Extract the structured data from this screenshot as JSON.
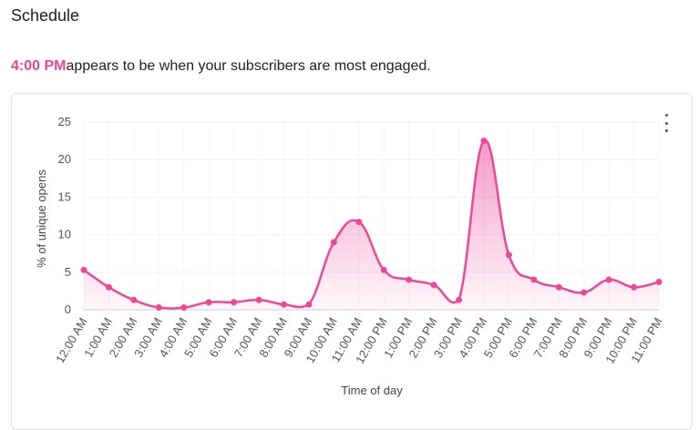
{
  "header": {
    "title": "Schedule"
  },
  "insight": {
    "highlight": "4:00 PM",
    "text": "appears to be when your subscribers are most engaged."
  },
  "colors": {
    "accent": "#e8479a",
    "line": "#ec4899"
  },
  "menu": {
    "icon": "kebab-menu-icon"
  },
  "chart_data": {
    "type": "area",
    "xlabel": "Time of day",
    "ylabel": "% of unique opens",
    "ylim": [
      0,
      25
    ],
    "yticks": [
      0,
      5,
      10,
      15,
      20,
      25
    ],
    "grid": true,
    "categories": [
      "12:00 AM",
      "1:00 AM",
      "2:00 AM",
      "3:00 AM",
      "4:00 AM",
      "5:00 AM",
      "6:00 AM",
      "7:00 AM",
      "8:00 AM",
      "9:00 AM",
      "10:00 AM",
      "11:00 AM",
      "12:00 PM",
      "1:00 PM",
      "2:00 PM",
      "3:00 PM",
      "4:00 PM",
      "5:00 PM",
      "6:00 PM",
      "7:00 PM",
      "8:00 PM",
      "9:00 PM",
      "10:00 PM",
      "11:00 PM"
    ],
    "values": [
      5.3,
      3.0,
      1.3,
      0.3,
      0.3,
      1.0,
      1.0,
      1.3,
      0.7,
      0.7,
      9.0,
      11.7,
      5.3,
      4.0,
      3.3,
      1.3,
      22.5,
      7.3,
      4.0,
      3.0,
      2.3,
      4.0,
      3.0,
      3.7
    ]
  }
}
